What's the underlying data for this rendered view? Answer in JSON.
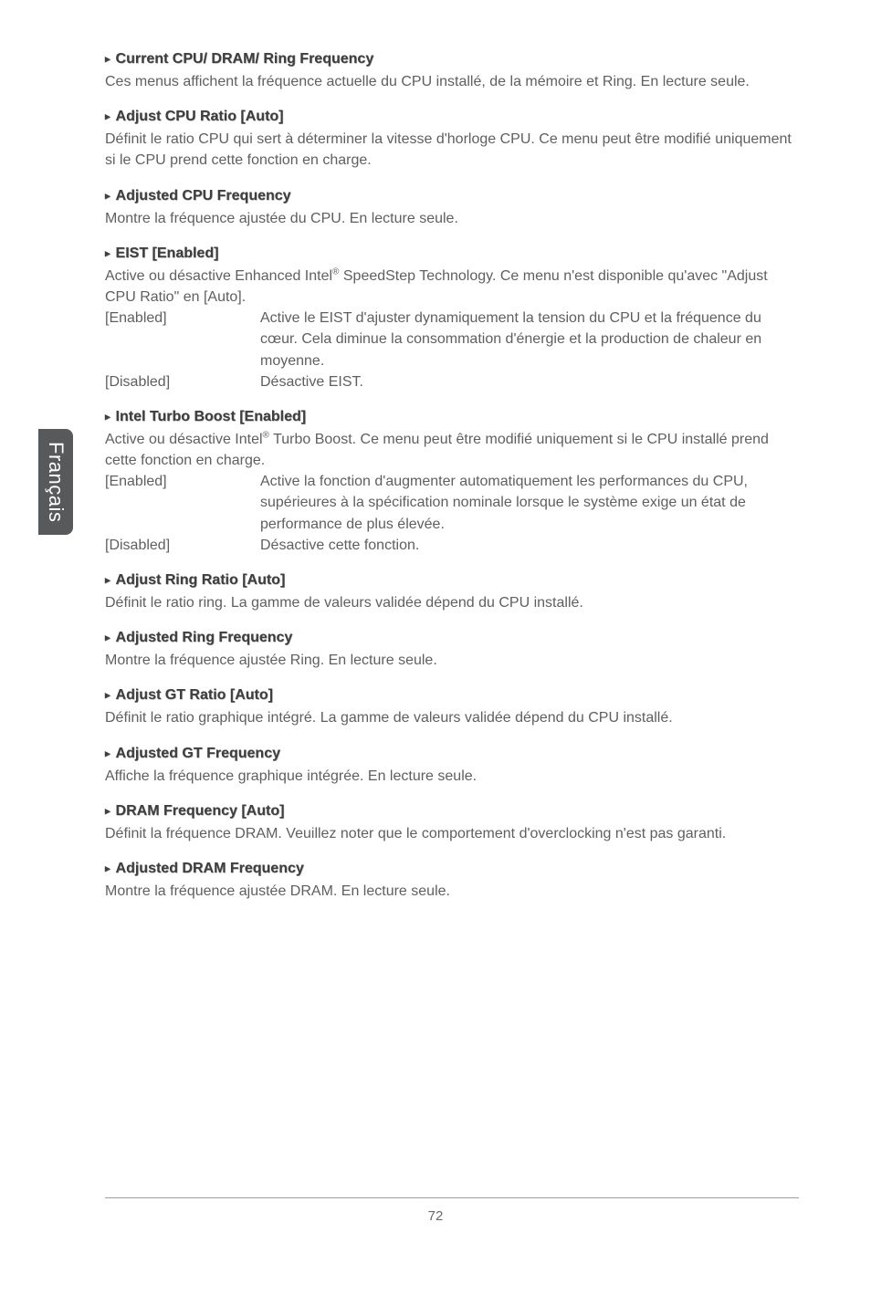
{
  "sidetab": {
    "label": "Français"
  },
  "sections": [
    {
      "heading": "Current CPU/ DRAM/ Ring Frequency",
      "body": "Ces menus affichent la fréquence actuelle du CPU installé, de la mémoire et Ring. En lecture seule."
    },
    {
      "heading": "Adjust CPU Ratio [Auto]",
      "body": "Définit le ratio CPU qui sert à déterminer la vitesse d'horloge CPU. Ce menu peut être modifié uniquement si le CPU prend cette fonction en charge."
    },
    {
      "heading": "Adjusted CPU Frequency",
      "body": "Montre la fréquence ajustée du CPU. En lecture seule."
    },
    {
      "heading": "EIST [Enabled]",
      "body_html": "Active ou désactive Enhanced Intel<sup>®</sup> SpeedStep Technology. Ce menu n'est disponible qu'avec \"Adjust CPU Ratio\" en [Auto].",
      "options": [
        {
          "key": "[Enabled]",
          "val": "Active le EIST d'ajuster dynamiquement la tension du CPU et la fréquence du cœur. Cela diminue la consommation d'énergie et la production de chaleur en moyenne."
        },
        {
          "key": "[Disabled]",
          "val": "Désactive EIST."
        }
      ]
    },
    {
      "heading": "Intel Turbo Boost [Enabled]",
      "body_html": "Active ou désactive Intel<sup>®</sup> Turbo Boost. Ce menu peut être modifié uniquement si le CPU installé prend cette fonction en charge.",
      "options": [
        {
          "key": "[Enabled]",
          "val": "Active la fonction d'augmenter automatiquement les performances du CPU, supérieures à la spécification nominale lorsque le système exige un état de performance de plus élevée."
        },
        {
          "key": "[Disabled]",
          "val": "Désactive cette fonction."
        }
      ]
    },
    {
      "heading": "Adjust Ring Ratio [Auto]",
      "body": "Définit le ratio ring. La gamme de valeurs validée dépend du CPU installé."
    },
    {
      "heading": "Adjusted Ring Frequency",
      "body": "Montre la fréquence ajustée Ring. En lecture seule."
    },
    {
      "heading": "Adjust GT Ratio [Auto]",
      "body": "Définit le ratio graphique intégré. La gamme de valeurs validée dépend du CPU installé."
    },
    {
      "heading": "Adjusted GT Frequency",
      "body": "Affiche la fréquence graphique intégrée. En lecture seule."
    },
    {
      "heading": "DRAM Frequency [Auto]",
      "body": "Définit la fréquence DRAM. Veuillez noter que le comportement d'overclocking n'est pas garanti."
    },
    {
      "heading": "Adjusted DRAM Frequency",
      "body": "Montre la fréquence ajustée DRAM. En lecture seule."
    }
  ],
  "page_number": "72",
  "triangle": "▸"
}
